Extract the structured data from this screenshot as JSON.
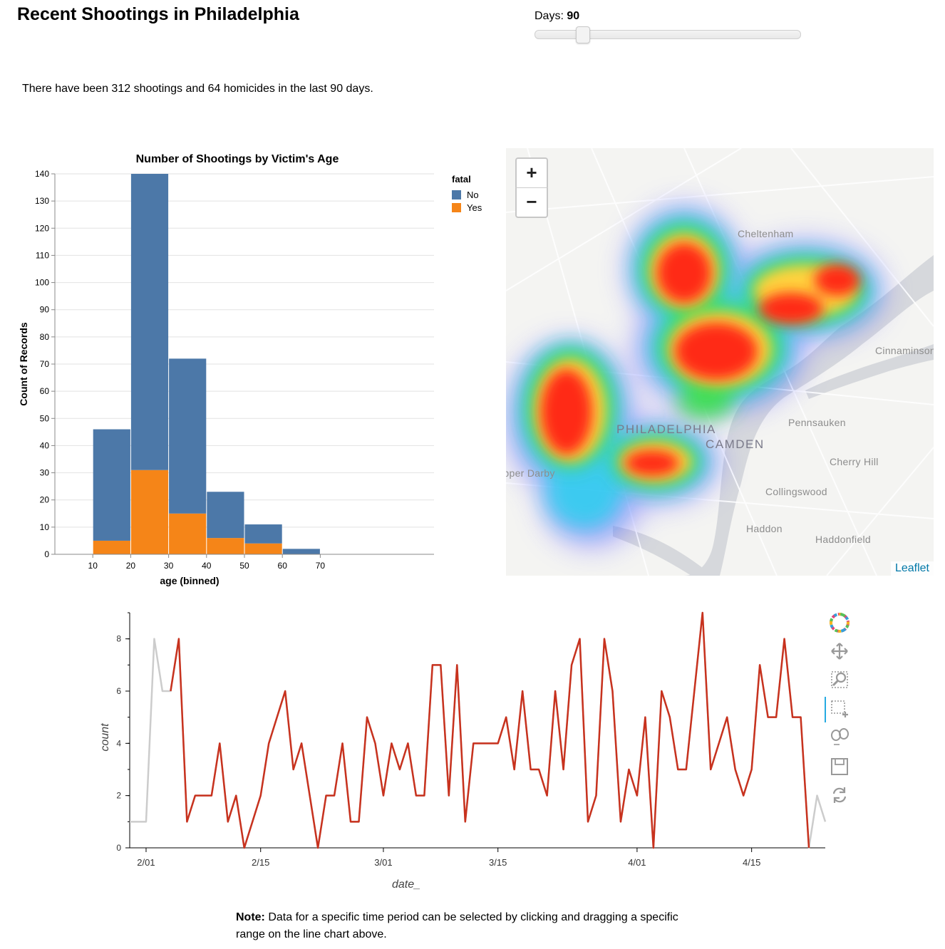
{
  "page": {
    "title": "Recent Shootings in Philadelphia",
    "slider": {
      "label": "Days:",
      "value": "90",
      "fraction": 0.18
    },
    "summary": "There have been 312 shootings and 64 homicides in the last 90 days.",
    "note_bold": "Note:",
    "note_text": " Data for a specific time period can be selected by clicking and dragging a specific range on the line chart above."
  },
  "map": {
    "zoom_in": "+",
    "zoom_out": "−",
    "attribution": "Leaflet",
    "labels": [
      "Cheltenham",
      "Cinnaminson",
      "PHILADELPHIA",
      "CAMDEN",
      "Pennsauken",
      "Cherry Hill",
      "Upper Darby",
      "Collingswood",
      "Haddon",
      "Haddonfield"
    ]
  },
  "toolbar": {
    "icons": [
      "bokeh-logo-icon",
      "pan-icon",
      "box-zoom-icon",
      "box-select-icon",
      "wheel-zoom-icon",
      "save-icon",
      "reset-icon"
    ]
  },
  "chart_data": [
    {
      "type": "bar",
      "title": "Number of Shootings by Victim's Age",
      "xlabel": "age (binned)",
      "ylabel": "Count of Records",
      "ylim": [
        0,
        140
      ],
      "x_ticks": [
        10,
        20,
        30,
        40,
        50,
        60,
        70
      ],
      "y_ticks": [
        0,
        10,
        20,
        30,
        40,
        50,
        60,
        70,
        80,
        90,
        100,
        110,
        120,
        130,
        140
      ],
      "stacked": true,
      "legend": {
        "title": "fatal",
        "position": "top-right"
      },
      "bins": [
        [
          10,
          20
        ],
        [
          20,
          30
        ],
        [
          30,
          40
        ],
        [
          40,
          50
        ],
        [
          50,
          60
        ],
        [
          60,
          70
        ]
      ],
      "series": [
        {
          "name": "No",
          "color": "#4c78a8",
          "values": [
            41,
            109,
            57,
            17,
            7,
            2
          ]
        },
        {
          "name": "Yes",
          "color": "#f58518",
          "values": [
            5,
            31,
            15,
            6,
            4,
            0
          ]
        }
      ]
    },
    {
      "type": "line",
      "xlabel": "date_",
      "ylabel": "count",
      "ylim": [
        0,
        9
      ],
      "x_range": [
        "2020-01-30",
        "2020-04-24"
      ],
      "y_ticks": [
        0,
        2,
        4,
        6,
        8
      ],
      "x_ticks": [
        {
          "date": "2020-02-01",
          "label": "2/01"
        },
        {
          "date": "2020-02-15",
          "label": "2/15"
        },
        {
          "date": "2020-03-01",
          "label": "3/01"
        },
        {
          "date": "2020-03-15",
          "label": "3/15"
        },
        {
          "date": "2020-04-01",
          "label": "4/01"
        },
        {
          "date": "2020-04-15",
          "label": "4/15"
        }
      ],
      "grid": false,
      "colors": {
        "selected": "#c8321e",
        "unselected": "#cccccc"
      },
      "selection": [
        "2020-02-04",
        "2020-04-22"
      ],
      "series": [
        {
          "x": [
            "2020-01-30",
            "2020-01-31",
            "2020-02-01",
            "2020-02-02",
            "2020-02-03",
            "2020-02-04",
            "2020-02-05",
            "2020-02-06",
            "2020-02-07",
            "2020-02-08",
            "2020-02-09",
            "2020-02-10",
            "2020-02-11",
            "2020-02-12",
            "2020-02-13",
            "2020-02-14",
            "2020-02-15",
            "2020-02-16",
            "2020-02-17",
            "2020-02-18",
            "2020-02-19",
            "2020-02-20",
            "2020-02-21",
            "2020-02-22",
            "2020-02-23",
            "2020-02-24",
            "2020-02-25",
            "2020-02-26",
            "2020-02-27",
            "2020-02-28",
            "2020-02-29",
            "2020-03-01",
            "2020-03-02",
            "2020-03-03",
            "2020-03-04",
            "2020-03-05",
            "2020-03-06",
            "2020-03-07",
            "2020-03-08",
            "2020-03-09",
            "2020-03-10",
            "2020-03-11",
            "2020-03-12",
            "2020-03-13",
            "2020-03-14",
            "2020-03-15",
            "2020-03-16",
            "2020-03-17",
            "2020-03-18",
            "2020-03-19",
            "2020-03-20",
            "2020-03-21",
            "2020-03-22",
            "2020-03-23",
            "2020-03-24",
            "2020-03-25",
            "2020-03-26",
            "2020-03-27",
            "2020-03-28",
            "2020-03-29",
            "2020-03-30",
            "2020-03-31",
            "2020-04-01",
            "2020-04-02",
            "2020-04-03",
            "2020-04-04",
            "2020-04-05",
            "2020-04-06",
            "2020-04-07",
            "2020-04-08",
            "2020-04-09",
            "2020-04-10",
            "2020-04-11",
            "2020-04-12",
            "2020-04-13",
            "2020-04-14",
            "2020-04-15",
            "2020-04-16",
            "2020-04-17",
            "2020-04-18",
            "2020-04-19",
            "2020-04-20",
            "2020-04-21",
            "2020-04-22",
            "2020-04-23",
            "2020-04-24"
          ],
          "y": [
            1,
            1,
            1,
            8,
            6,
            6,
            8,
            1,
            2,
            2,
            2,
            4,
            1,
            2,
            0,
            1,
            2,
            4,
            5,
            6,
            3,
            4,
            2,
            0,
            2,
            2,
            4,
            1,
            1,
            5,
            4,
            2,
            4,
            3,
            4,
            2,
            2,
            7,
            7,
            2,
            7,
            1,
            4,
            4,
            4,
            4,
            5,
            3,
            6,
            3,
            3,
            2,
            6,
            3,
            7,
            8,
            1,
            2,
            8,
            6,
            1,
            3,
            2,
            5,
            0,
            6,
            5,
            3,
            3,
            6,
            9,
            3,
            4,
            5,
            3,
            2,
            3,
            7,
            5,
            5,
            8,
            5,
            5,
            0,
            2,
            1
          ]
        }
      ]
    }
  ]
}
